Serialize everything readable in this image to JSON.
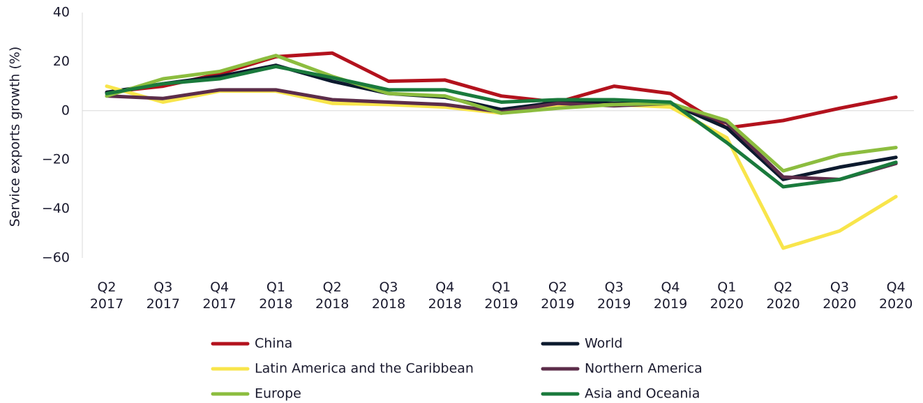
{
  "chart_data": {
    "type": "line",
    "y_label": "Service exports growth (%)",
    "categories": [
      "Q2 2017",
      "Q3 2017",
      "Q4 2017",
      "Q1 2018",
      "Q2 2018",
      "Q3 2018",
      "Q4 2018",
      "Q1 2019",
      "Q2 2019",
      "Q3 2019",
      "Q4 2019",
      "Q1 2020",
      "Q2 2020",
      "Q3 2020",
      "Q4 2020"
    ],
    "ylim": [
      -60,
      40
    ],
    "yticks": [
      {
        "value": -60,
        "label": "−60"
      },
      {
        "value": -40,
        "label": "−40"
      },
      {
        "value": -20,
        "label": "−20"
      },
      0,
      20,
      40
    ],
    "series": [
      {
        "name": "China",
        "color": "#b3121d",
        "values": [
          7.5,
          10,
          15,
          22,
          23.5,
          12,
          12.5,
          6,
          3.5,
          10,
          7,
          -7,
          -4,
          1,
          5.5
        ]
      },
      {
        "name": "World",
        "color": "#0c1a2e",
        "values": [
          7.5,
          11,
          14,
          18.5,
          12,
          7,
          5.5,
          0.5,
          3.5,
          3,
          3,
          -7,
          -28,
          -23,
          -19
        ]
      },
      {
        "name": "Latin America and the Caribbean",
        "color": "#f8e54b",
        "values": [
          10,
          3.5,
          8,
          8,
          3,
          2.5,
          1.5,
          -1,
          1.5,
          2.5,
          1.5,
          -11,
          -56,
          -49,
          -35
        ]
      },
      {
        "name": "Northern America",
        "color": "#5c2d4a",
        "values": [
          6,
          5,
          8.5,
          8.5,
          4.5,
          3.5,
          2.5,
          -0.5,
          3,
          2,
          3,
          -5,
          -27,
          -28,
          -21.5
        ]
      },
      {
        "name": "Europe",
        "color": "#8cbd3f",
        "values": [
          6,
          13,
          16,
          22.5,
          14,
          7,
          6,
          -1,
          1,
          2.5,
          3,
          -4,
          -24.5,
          -18,
          -15
        ]
      },
      {
        "name": "Asia and Oceania",
        "color": "#1a7a3c",
        "values": [
          7,
          11,
          13,
          18,
          13.5,
          8.5,
          8.5,
          3.5,
          4.5,
          4.5,
          3.5,
          -13,
          -31,
          -28,
          -21
        ]
      }
    ]
  }
}
